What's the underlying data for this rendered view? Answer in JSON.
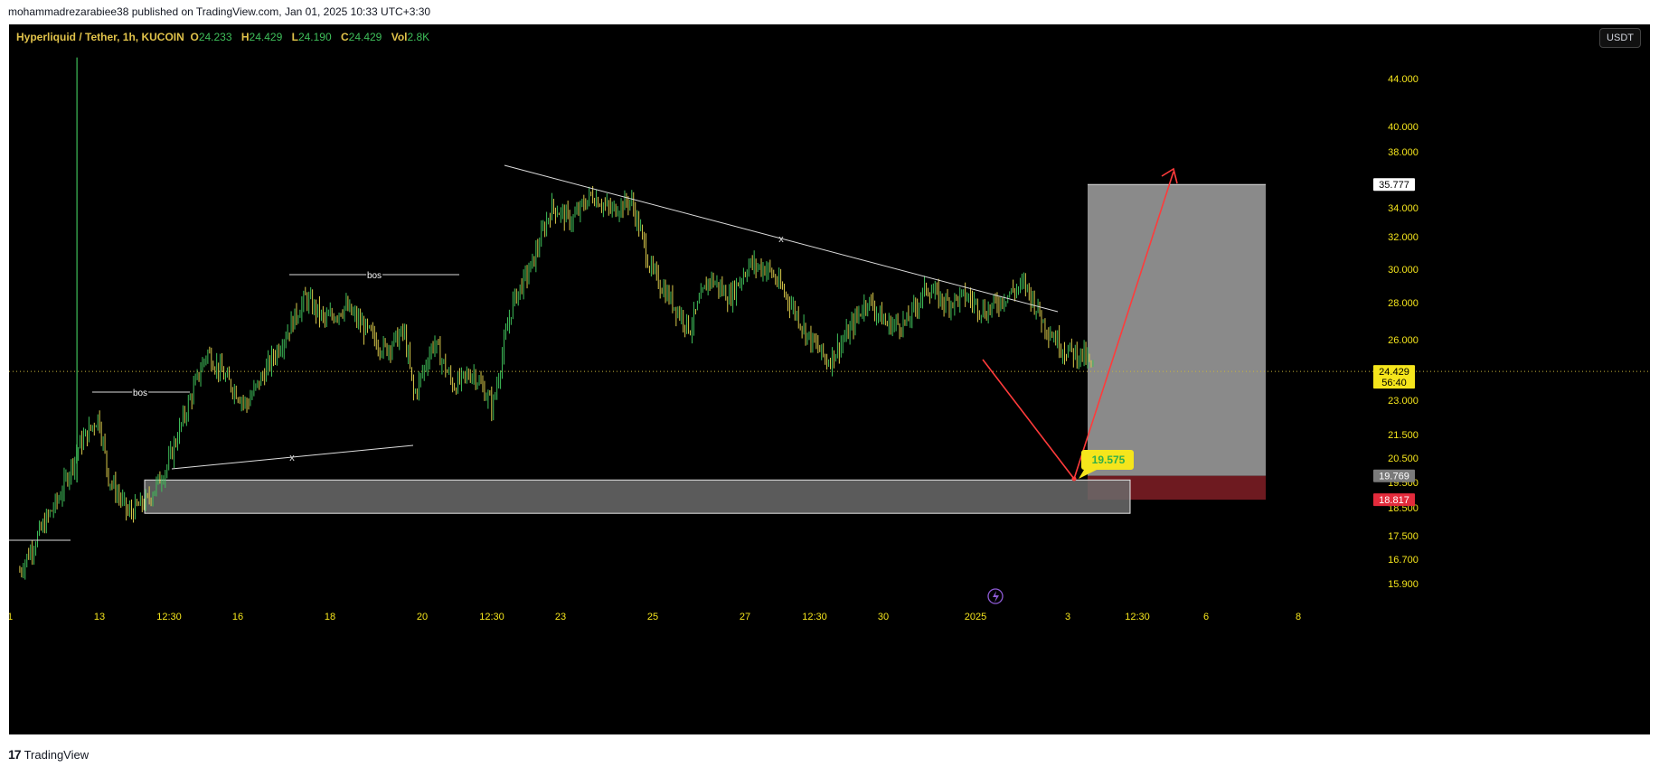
{
  "header": {
    "published_text": "mohammadrezarabiee38 published on TradingView.com, Jan 01, 2025 10:33 UTC+3:30"
  },
  "legend": {
    "symbol": "Hyperliquid / Tether, 1h, KUCOIN",
    "open_label": "O",
    "open": "24.233",
    "high_label": "H",
    "high": "24.429",
    "low_label": "L",
    "low": "24.190",
    "close_label": "C",
    "close": "24.429",
    "vol_label": "Vol",
    "vol": "2.8K"
  },
  "currency_button": "USDT",
  "footer": {
    "brand": "TradingView",
    "logo": "17"
  },
  "colors": {
    "background": "#000000",
    "up": "#3fbf5a",
    "down": "#d8c84a",
    "annotation_red": "#ff3b3b",
    "box_gray": "#8a8a8a",
    "box_red": "#6e1a20",
    "price_tag": "#f5e51c"
  },
  "chart_data": {
    "type": "candlestick",
    "symbol": "Hyperliquid / Tether",
    "timeframe": "1h",
    "exchange": "KUCOIN",
    "y_ticks": [
      "44.000",
      "40.000",
      "38.000",
      "36.000",
      "34.000",
      "32.000",
      "30.000",
      "28.000",
      "26.000",
      "23.000",
      "21.500",
      "20.500",
      "19.500",
      "18.500",
      "17.500",
      "16.700",
      "15.900"
    ],
    "x_ticks": [
      "1",
      "13",
      "12:30",
      "16",
      "18",
      "20",
      "12:30",
      "23",
      "25",
      "27",
      "12:30",
      "30",
      "2025",
      "3",
      "12:30",
      "6",
      "8"
    ],
    "price_axis_tags": {
      "target": "35.777",
      "last_price": "24.429",
      "countdown": "56:40",
      "entry": "19.769",
      "stop": "18.817"
    },
    "price_path": [
      [
        1,
        16.3
      ],
      [
        3,
        17.6
      ],
      [
        5,
        18.9
      ],
      [
        7,
        21.0
      ],
      [
        9,
        22.3
      ],
      [
        10,
        19.7
      ],
      [
        12,
        18.3
      ],
      [
        14,
        18.8
      ],
      [
        16,
        20.2
      ],
      [
        18,
        22.7
      ],
      [
        20,
        25.4
      ],
      [
        22,
        24.0
      ],
      [
        24,
        22.8
      ],
      [
        26,
        24.5
      ],
      [
        28,
        26.3
      ],
      [
        30,
        28.3
      ],
      [
        32,
        27.0
      ],
      [
        34,
        27.8
      ],
      [
        36,
        26.6
      ],
      [
        38,
        25.5
      ],
      [
        40,
        26.4
      ],
      [
        41,
        23.2
      ],
      [
        43,
        25.9
      ],
      [
        45,
        23.7
      ],
      [
        47,
        24.4
      ],
      [
        49,
        22.7
      ],
      [
        51,
        28.0
      ],
      [
        53,
        30.3
      ],
      [
        55,
        34.1
      ],
      [
        57,
        33.1
      ],
      [
        59,
        35.0
      ],
      [
        61,
        33.8
      ],
      [
        63,
        34.6
      ],
      [
        65,
        30.0
      ],
      [
        67,
        28.2
      ],
      [
        69,
        26.6
      ],
      [
        71,
        29.5
      ],
      [
        73,
        28.3
      ],
      [
        75,
        30.3
      ],
      [
        77,
        30.0
      ],
      [
        79,
        28.2
      ],
      [
        81,
        26.2
      ],
      [
        83,
        24.9
      ],
      [
        85,
        26.3
      ],
      [
        87,
        28.2
      ],
      [
        89,
        26.8
      ],
      [
        91,
        26.9
      ],
      [
        93,
        28.9
      ],
      [
        95,
        28.0
      ],
      [
        97,
        28.4
      ],
      [
        99,
        27.5
      ],
      [
        101,
        28.4
      ],
      [
        103,
        29.1
      ],
      [
        105,
        26.8
      ],
      [
        107,
        25.5
      ],
      [
        109,
        25.2
      ],
      [
        110,
        24.4
      ]
    ],
    "annotations": {
      "bos_levels": [
        {
          "label": "bos",
          "price": 22.9
        },
        {
          "label": "bos",
          "price": 29.4
        }
      ],
      "trend_line_lower_label": "x",
      "trend_line_upper_label": "x",
      "projection_low_label": "19.575",
      "support_zone": {
        "from": 18.3,
        "to": 19.6
      },
      "long_position": {
        "entry": 19.769,
        "target": 35.777,
        "stop": 18.817
      }
    }
  }
}
